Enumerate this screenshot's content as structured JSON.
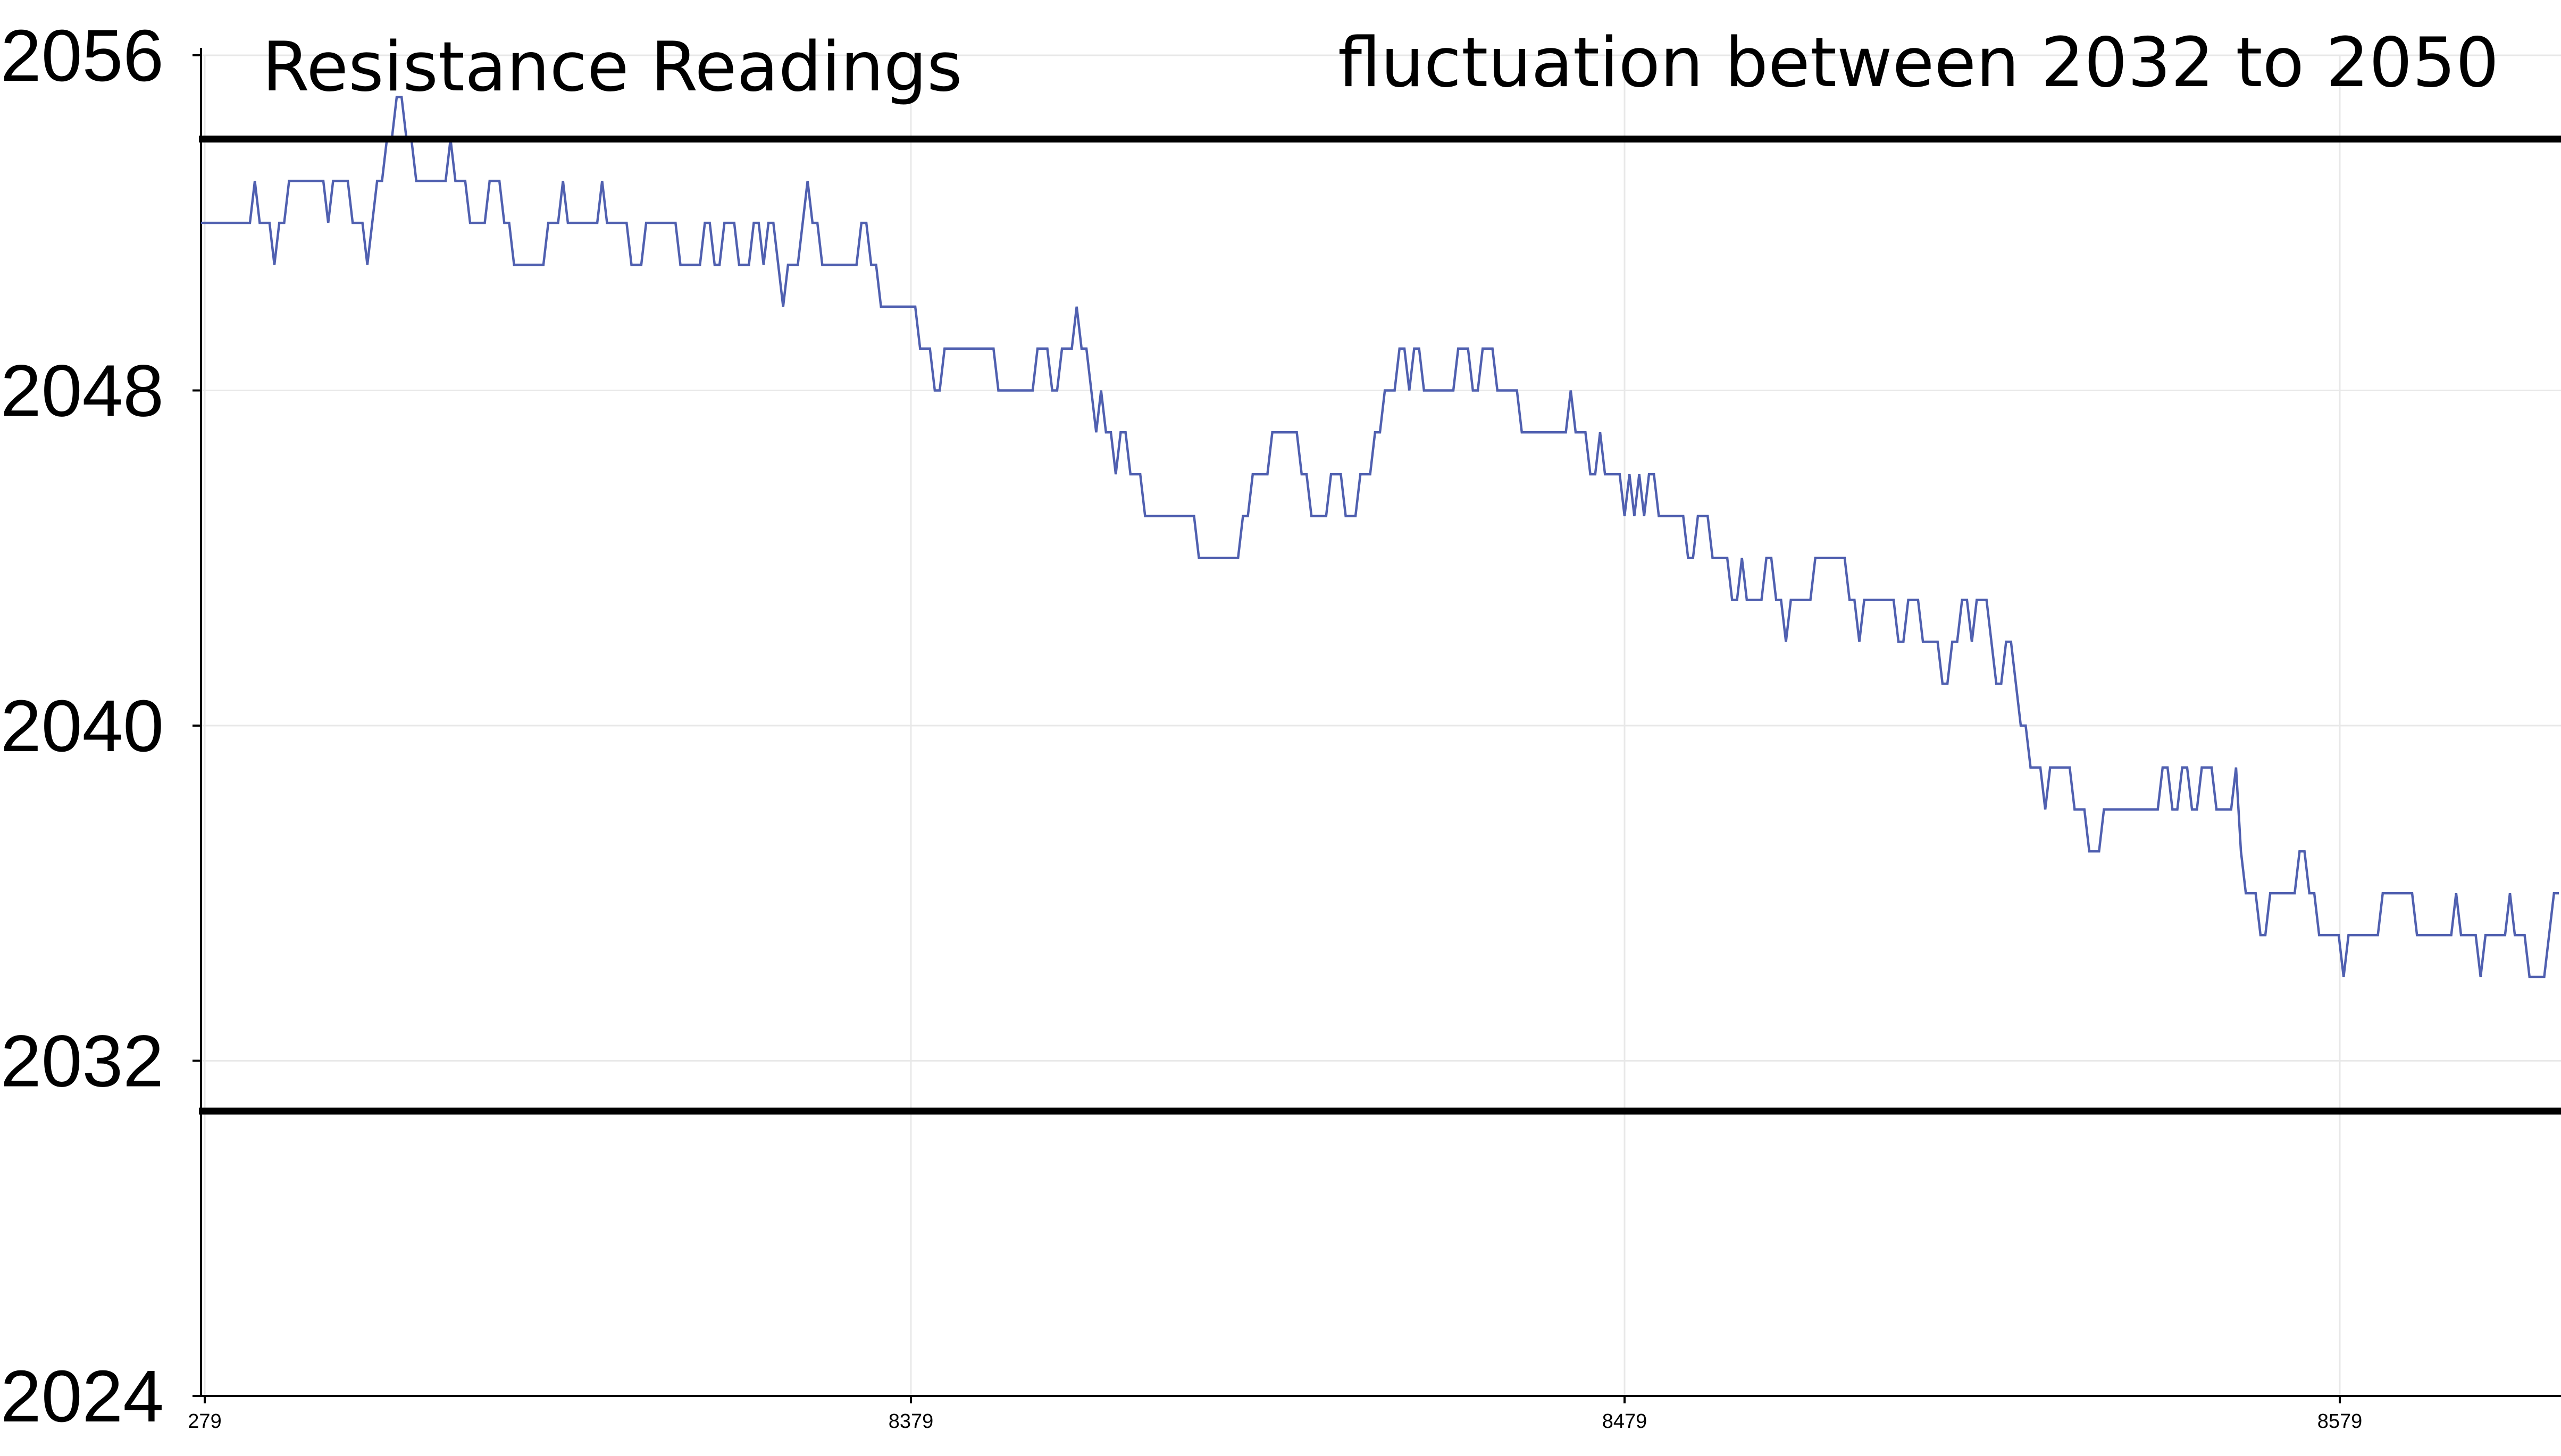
{
  "chart_data": {
    "type": "line",
    "title": "Resistance Readings",
    "annotation": "fluctuation between 2032 to 2050",
    "x_tick_labels": [
      "279",
      "8379",
      "8479",
      "8579"
    ],
    "y_ticks": [
      2024,
      2032,
      2040,
      2048,
      2056
    ],
    "ylim": [
      2024,
      2056
    ],
    "reference_lines": [
      2054,
      2030.8
    ],
    "grid": true,
    "series_color": "#5060b0",
    "series": [
      {
        "values": [
          2052,
          2052,
          2052,
          2052,
          2052,
          2052,
          2052,
          2052,
          2052,
          2052,
          2052,
          2053,
          2052,
          2052,
          2052,
          2051,
          2052,
          2052,
          2053,
          2053,
          2053,
          2053,
          2053,
          2053,
          2053,
          2053,
          2052,
          2053,
          2053,
          2053,
          2053,
          2052,
          2052,
          2052,
          2051,
          2052,
          2053,
          2053,
          2054,
          2054,
          2055,
          2055,
          2054,
          2054,
          2053,
          2053,
          2053,
          2053,
          2053,
          2053,
          2053,
          2054,
          2053,
          2053,
          2053,
          2052,
          2052,
          2052,
          2052,
          2053,
          2053,
          2053,
          2052,
          2052,
          2051,
          2051,
          2051,
          2051,
          2051,
          2051,
          2051,
          2052,
          2052,
          2052,
          2053,
          2052,
          2052,
          2052,
          2052,
          2052,
          2052,
          2052,
          2053,
          2052,
          2052,
          2052,
          2052,
          2052,
          2051,
          2051,
          2051,
          2052,
          2052,
          2052,
          2052,
          2052,
          2052,
          2052,
          2051,
          2051,
          2051,
          2051,
          2051,
          2052,
          2052,
          2051,
          2051,
          2052,
          2052,
          2052,
          2051,
          2051,
          2051,
          2052,
          2052,
          2051,
          2052,
          2052,
          2051,
          2050,
          2051,
          2051,
          2051,
          2052,
          2053,
          2052,
          2052,
          2051,
          2051,
          2051,
          2051,
          2051,
          2051,
          2051,
          2051,
          2052,
          2052,
          2051,
          2051,
          2050,
          2050,
          2050,
          2050,
          2050,
          2050,
          2050,
          2050,
          2049,
          2049,
          2049,
          2048,
          2048,
          2049,
          2049,
          2049,
          2049,
          2049,
          2049,
          2049,
          2049,
          2049,
          2049,
          2049,
          2048,
          2048,
          2048,
          2048,
          2048,
          2048,
          2048,
          2048,
          2049,
          2049,
          2049,
          2048,
          2048,
          2049,
          2049,
          2049,
          2050,
          2049,
          2049,
          2048,
          2047,
          2048,
          2047,
          2047,
          2046,
          2047,
          2047,
          2046,
          2046,
          2046,
          2045,
          2045,
          2045,
          2045,
          2045,
          2045,
          2045,
          2045,
          2045,
          2045,
          2045,
          2044,
          2044,
          2044,
          2044,
          2044,
          2044,
          2044,
          2044,
          2044,
          2045,
          2045,
          2046,
          2046,
          2046,
          2046,
          2047,
          2047,
          2047,
          2047,
          2047,
          2047,
          2046,
          2046,
          2045,
          2045,
          2045,
          2045,
          2046,
          2046,
          2046,
          2045,
          2045,
          2045,
          2046,
          2046,
          2046,
          2047,
          2047,
          2048,
          2048,
          2048,
          2049,
          2049,
          2048,
          2049,
          2049,
          2048,
          2048,
          2048,
          2048,
          2048,
          2048,
          2048,
          2049,
          2049,
          2049,
          2048,
          2048,
          2049,
          2049,
          2049,
          2048,
          2048,
          2048,
          2048,
          2048,
          2047,
          2047,
          2047,
          2047,
          2047,
          2047,
          2047,
          2047,
          2047,
          2047,
          2048,
          2047,
          2047,
          2047,
          2046,
          2046,
          2047,
          2046,
          2046,
          2046,
          2046,
          2045,
          2046,
          2045,
          2046,
          2045,
          2046,
          2046,
          2045,
          2045,
          2045,
          2045,
          2045,
          2045,
          2044,
          2044,
          2045,
          2045,
          2045,
          2044,
          2044,
          2044,
          2044,
          2043,
          2043,
          2044,
          2043,
          2043,
          2043,
          2043,
          2044,
          2044,
          2043,
          2043,
          2042,
          2043,
          2043,
          2043,
          2043,
          2043,
          2044,
          2044,
          2044,
          2044,
          2044,
          2044,
          2044,
          2043,
          2043,
          2042,
          2043,
          2043,
          2043,
          2043,
          2043,
          2043,
          2043,
          2042,
          2042,
          2043,
          2043,
          2043,
          2042,
          2042,
          2042,
          2042,
          2041,
          2041,
          2042,
          2042,
          2043,
          2043,
          2042,
          2043,
          2043,
          2043,
          2042,
          2041,
          2041,
          2042,
          2042,
          2041,
          2040,
          2040,
          2039,
          2039,
          2039,
          2038,
          2039,
          2039,
          2039,
          2039,
          2039,
          2038,
          2038,
          2038,
          2037,
          2037,
          2037,
          2038,
          2038,
          2038,
          2038,
          2038,
          2038,
          2038,
          2038,
          2038,
          2038,
          2038,
          2038,
          2039,
          2039,
          2038,
          2038,
          2039,
          2039,
          2038,
          2038,
          2039,
          2039,
          2039,
          2038,
          2038,
          2038,
          2038,
          2039,
          2037,
          2036,
          2036,
          2036,
          2035,
          2035,
          2036,
          2036,
          2036,
          2036,
          2036,
          2036,
          2037,
          2037,
          2036,
          2036,
          2035,
          2035,
          2035,
          2035,
          2035,
          2034,
          2035,
          2035,
          2035,
          2035,
          2035,
          2035,
          2035,
          2036,
          2036,
          2036,
          2036,
          2036,
          2036,
          2036,
          2035,
          2035,
          2035,
          2035,
          2035,
          2035,
          2035,
          2035,
          2036,
          2035,
          2035,
          2035,
          2035,
          2034,
          2035,
          2035,
          2035,
          2035,
          2035,
          2036,
          2035,
          2035,
          2035,
          2034,
          2034,
          2034,
          2034,
          2035,
          2036,
          2036
        ]
      }
    ]
  }
}
